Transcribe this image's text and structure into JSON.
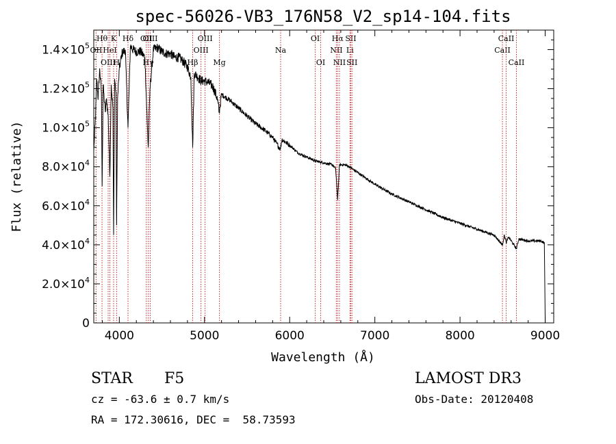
{
  "chart_data": {
    "type": "line",
    "title": "spec-56026-VB3_176N58_V2_sp14-104.fits",
    "xlabel": "Wavelength (Å)",
    "ylabel": "Flux (relative)",
    "xlim": [
      3700,
      9100
    ],
    "ylim": [
      0,
      150000
    ],
    "x_ticks": [
      4000,
      5000,
      6000,
      7000,
      8000,
      9000
    ],
    "y_ticks": [
      {
        "value": 0,
        "mant": "0",
        "exp": ""
      },
      {
        "value": 20000,
        "mant": "2.0×10",
        "exp": "4"
      },
      {
        "value": 40000,
        "mant": "4.0×10",
        "exp": "4"
      },
      {
        "value": 60000,
        "mant": "6.0×10",
        "exp": "4"
      },
      {
        "value": 80000,
        "mant": "8.0×10",
        "exp": "4"
      },
      {
        "value": 100000,
        "mant": "1.0×10",
        "exp": "5"
      },
      {
        "value": 120000,
        "mant": "1.2×10",
        "exp": "5"
      },
      {
        "value": 140000,
        "mant": "1.4×10",
        "exp": "5"
      }
    ],
    "series": [
      {
        "name": "spectrum",
        "x": [
          3700,
          3720,
          3735,
          3750,
          3770,
          3790,
          3798,
          3810,
          3835,
          3850,
          3870,
          3889,
          3905,
          3925,
          3933,
          3945,
          3960,
          3968,
          3980,
          4000,
          4030,
          4070,
          4102,
          4130,
          4160,
          4200,
          4250,
          4300,
          4330,
          4340,
          4360,
          4400,
          4450,
          4500,
          4550,
          4600,
          4650,
          4700,
          4750,
          4800,
          4840,
          4861,
          4880,
          4920,
          4960,
          5000,
          5050,
          5100,
          5150,
          5172,
          5200,
          5300,
          5400,
          5500,
          5600,
          5700,
          5800,
          5890,
          5910,
          6000,
          6100,
          6200,
          6300,
          6400,
          6500,
          6540,
          6563,
          6585,
          6650,
          6700,
          6800,
          6900,
          7000,
          7200,
          7400,
          7600,
          7800,
          8000,
          8200,
          8400,
          8498,
          8520,
          8542,
          8570,
          8662,
          8690,
          8800,
          8950,
          8990,
          9000
        ],
        "y": [
          88000,
          105000,
          125000,
          115000,
          130000,
          118000,
          70000,
          122000,
          108000,
          115000,
          105000,
          75000,
          122000,
          110000,
          45000,
          125000,
          118000,
          50000,
          115000,
          130000,
          138000,
          140000,
          100000,
          142000,
          140000,
          139000,
          139000,
          136000,
          100000,
          90000,
          120000,
          140000,
          141000,
          139000,
          138000,
          138000,
          136000,
          136000,
          134000,
          131000,
          126000,
          90000,
          128000,
          126000,
          124000,
          124000,
          123000,
          121000,
          115000,
          108000,
          117000,
          114000,
          110000,
          106000,
          102000,
          99000,
          95000,
          89000,
          94000,
          91000,
          87000,
          85000,
          83000,
          82000,
          81000,
          79000,
          63000,
          81000,
          81000,
          80000,
          77000,
          74000,
          71000,
          66000,
          62000,
          58000,
          54000,
          51000,
          48000,
          45000,
          40000,
          45000,
          41000,
          44000,
          38000,
          43000,
          42000,
          42000,
          41000,
          0
        ]
      }
    ],
    "line_markers": [
      {
        "name": "Hθ",
        "wl": 3797,
        "row": 0
      },
      {
        "name": "OII",
        "wl": 3727,
        "row": 1
      },
      {
        "name": "HeI",
        "wl": 3889,
        "row": 1
      },
      {
        "name": "OIII",
        "wl": 3869,
        "row": 2
      },
      {
        "name": "K",
        "wl": 3933,
        "row": 0
      },
      {
        "name": "H",
        "wl": 3968,
        "row": 2
      },
      {
        "name": "Hδ",
        "wl": 4102,
        "row": 0
      },
      {
        "name": "OII",
        "wl": 4317,
        "row": 0
      },
      {
        "name": "Hγ",
        "wl": 4340,
        "row": 2
      },
      {
        "name": "OIII",
        "wl": 4363,
        "row": 0
      },
      {
        "name": "Hβ",
        "wl": 4861,
        "row": 2
      },
      {
        "name": "OIII",
        "wl": 4959,
        "row": 1
      },
      {
        "name": "OIII",
        "wl": 5007,
        "row": 0
      },
      {
        "name": "Mg",
        "wl": 5175,
        "row": 2
      },
      {
        "name": "Na",
        "wl": 5894,
        "row": 1
      },
      {
        "name": "OI",
        "wl": 6300,
        "row": 0
      },
      {
        "name": "OI",
        "wl": 6364,
        "row": 2
      },
      {
        "name": "NII",
        "wl": 6548,
        "row": 1
      },
      {
        "name": "Hα",
        "wl": 6563,
        "row": 0
      },
      {
        "name": "NII",
        "wl": 6584,
        "row": 2
      },
      {
        "name": "Li",
        "wl": 6708,
        "row": 1
      },
      {
        "name": "SII",
        "wl": 6717,
        "row": 0
      },
      {
        "name": "SII",
        "wl": 6731,
        "row": 2
      },
      {
        "name": "CaII",
        "wl": 8498,
        "row": 1
      },
      {
        "name": "CaII",
        "wl": 8542,
        "row": 0
      },
      {
        "name": "CaII",
        "wl": 8662,
        "row": 2
      }
    ]
  },
  "info": {
    "object_type": "STAR",
    "subclass": "F5",
    "survey": "LAMOST DR3",
    "cz": "cz = -63.6 ± 0.7 km/s",
    "obs_date": "Obs-Date: 20120408",
    "coords": "RA = 172.30616, DEC =  58.73593"
  }
}
